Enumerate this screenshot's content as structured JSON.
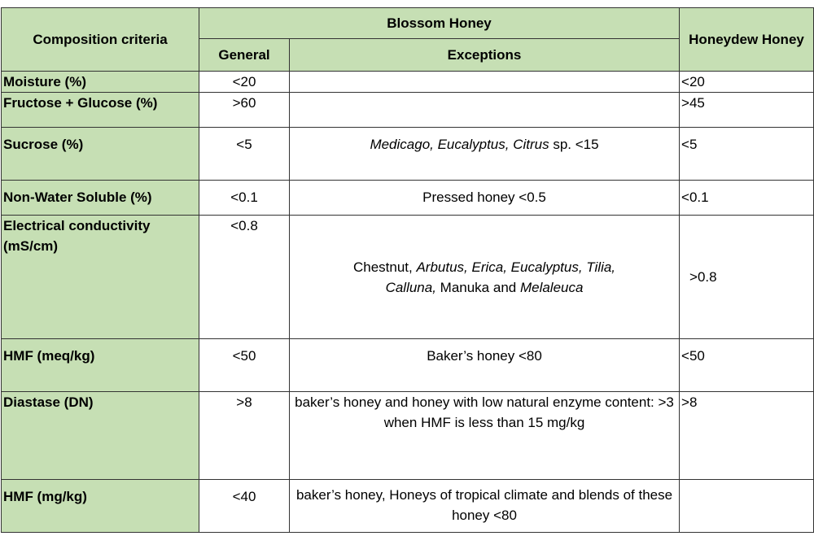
{
  "headers": {
    "criteria": "Composition criteria",
    "blossom": "Blossom Honey",
    "general": "General",
    "exceptions": "Exceptions",
    "honeydew": "Honeydew Honey"
  },
  "rows": [
    {
      "criterion": "Moisture (%)",
      "general": "<20",
      "exception": "",
      "honeydew": "<20"
    },
    {
      "criterion": "Fructose + Glucose (%)",
      "general": ">60",
      "exception": "",
      "honeydew": ">45"
    },
    {
      "criterion": "Sucrose (%)",
      "general": "<5",
      "exception_parts": [
        "Medicago, Eucalyptus, Citrus",
        " sp. <15"
      ],
      "honeydew": "<5"
    },
    {
      "criterion": "Non-Water Soluble (%)",
      "general": "<0.1",
      "exception": "Pressed honey <0.5",
      "honeydew": "<0.1"
    },
    {
      "criterion": "Electrical conductivity (mS/cm)",
      "general": "<0.8",
      "exception_parts": [
        "Chestnut, ",
        "Arbutus, Erica, Eucalyptus, Tilia,",
        "Calluna,",
        " Manuka and ",
        "Melaleuca"
      ],
      "honeydew": ">0.8"
    },
    {
      "criterion": "HMF  (meq/kg)",
      "general": "<50",
      "exception": "Baker’s honey <80",
      "honeydew": "<50"
    },
    {
      "criterion": "Diastase (DN)",
      "general": ">8",
      "exception": "baker’s honey and honey with low natural enzyme content: >3 when HMF is less than 15 mg/kg",
      "honeydew": ">8"
    },
    {
      "criterion": "HMF (mg/kg)",
      "general": "<40",
      "exception": "baker’s honey, Honeys of tropical climate and blends of these honey <80",
      "honeydew": ""
    }
  ]
}
